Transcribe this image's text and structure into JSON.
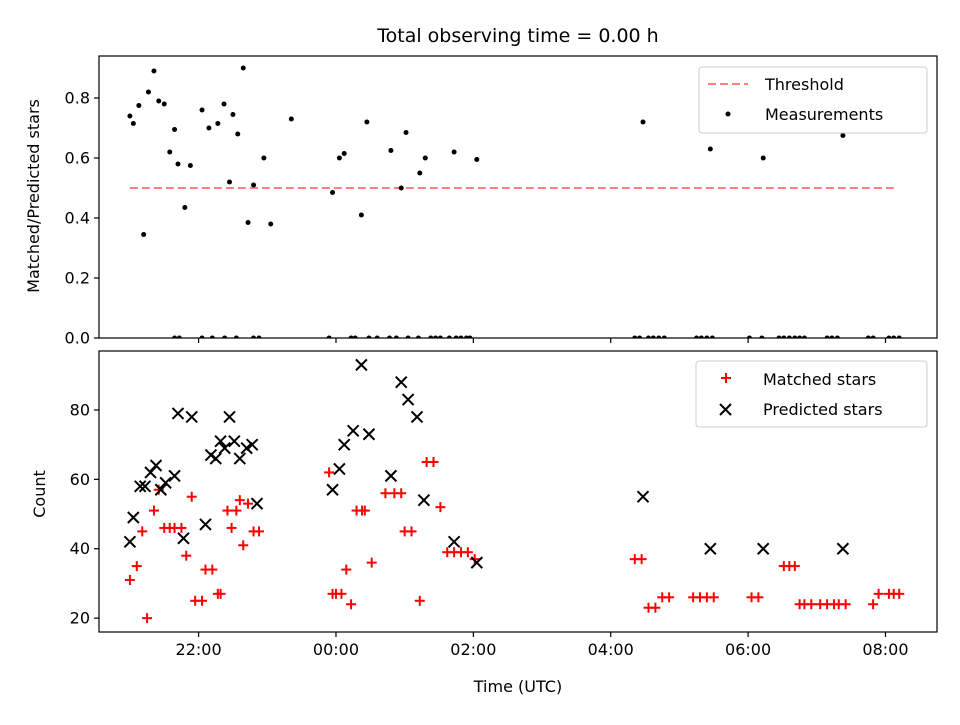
{
  "chart_data": [
    {
      "type": "scatter",
      "title": "Total observing time = 0.00 h",
      "xlabel": "",
      "ylabel": "Matched/Predicted stars",
      "xlim": [
        -3.45,
        8.75
      ],
      "ylim": [
        0,
        0.94
      ],
      "xticks": [
        -2,
        0,
        2,
        4,
        6,
        8
      ],
      "xtick_labels": [
        "",
        "",
        "",
        "",
        "",
        ""
      ],
      "yticks": [
        0,
        0.2,
        0.4,
        0.6,
        0.8
      ],
      "ytick_labels": [
        "0.0",
        "0.2",
        "0.4",
        "0.6",
        "0.8"
      ],
      "legend_position": "top-right",
      "series": [
        {
          "name": "Threshold",
          "style": "dashed-line",
          "color": "#ff7f7f",
          "x": [
            -3.0,
            8.15
          ],
          "y": [
            0.5,
            0.5
          ]
        },
        {
          "name": "Measurements",
          "style": "dot",
          "color": "#000000",
          "x": [
            -3.0,
            -2.95,
            -2.87,
            -2.8,
            -2.73,
            -2.65,
            -2.58,
            -2.5,
            -2.42,
            -2.35,
            -2.3,
            -2.2,
            -2.12,
            -1.95,
            -1.85,
            -1.72,
            -1.63,
            -1.55,
            -1.5,
            -1.43,
            -1.35,
            -1.28,
            -1.2,
            -1.05,
            -0.95,
            -0.65,
            -0.05,
            0.05,
            0.12,
            0.37,
            0.45,
            0.8,
            0.95,
            1.02,
            1.22,
            1.3,
            1.72,
            2.05,
            4.47,
            5.45,
            6.22,
            7.38
          ],
          "y": [
            0.74,
            0.715,
            0.775,
            0.345,
            0.82,
            0.89,
            0.79,
            0.78,
            0.62,
            0.695,
            0.58,
            0.435,
            0.575,
            0.76,
            0.7,
            0.715,
            0.78,
            0.52,
            0.745,
            0.68,
            0.9,
            0.385,
            0.51,
            0.6,
            0.38,
            0.73,
            0.485,
            0.6,
            0.615,
            0.41,
            0.72,
            0.625,
            0.5,
            0.685,
            0.55,
            0.6,
            0.62,
            0.595,
            0.72,
            0.63,
            0.6,
            0.675
          ]
        },
        {
          "name": "",
          "style": "dot",
          "color": "#000000",
          "x": [
            -2.35,
            -2.28,
            -1.95,
            -1.8,
            -1.62,
            -1.45,
            -1.2,
            -1.12,
            -0.1,
            0.22,
            0.28,
            0.48,
            0.6,
            0.78,
            0.88,
            1.05,
            1.2,
            1.38,
            1.45,
            1.52,
            1.65,
            1.75,
            1.82,
            1.9,
            1.95,
            4.35,
            4.42,
            4.55,
            4.62,
            4.7,
            4.78,
            5.25,
            5.32,
            5.4,
            5.48,
            6.02,
            6.2,
            6.45,
            6.52,
            6.6,
            6.68,
            6.75,
            6.82,
            7.15,
            7.22,
            7.3,
            7.75,
            7.82,
            8.05,
            8.12,
            8.2
          ],
          "y": [
            0,
            0,
            0,
            0,
            0,
            0,
            0,
            0,
            0,
            0,
            0,
            0,
            0,
            0,
            0,
            0,
            0,
            0,
            0,
            0,
            0,
            0,
            0,
            0,
            0,
            0,
            0,
            0,
            0,
            0,
            0,
            0,
            0,
            0,
            0,
            0,
            0,
            0,
            0,
            0,
            0,
            0,
            0,
            0,
            0,
            0,
            0,
            0,
            0,
            0,
            0
          ]
        }
      ]
    },
    {
      "type": "scatter",
      "title": "",
      "xlabel": "Time (UTC)",
      "ylabel": "Count",
      "xlim": [
        -3.45,
        8.75
      ],
      "ylim": [
        16,
        97
      ],
      "xticks": [
        -2,
        0,
        2,
        4,
        6,
        8
      ],
      "xtick_labels": [
        "22:00",
        "00:00",
        "02:00",
        "04:00",
        "06:00",
        "08:00"
      ],
      "yticks": [
        20,
        40,
        60,
        80
      ],
      "ytick_labels": [
        "20",
        "40",
        "60",
        "80"
      ],
      "legend_position": "top-right",
      "series": [
        {
          "name": "Matched stars",
          "style": "plus",
          "color": "#ff0000",
          "x": [
            -3.0,
            -2.9,
            -2.82,
            -2.75,
            -2.65,
            -2.58,
            -2.5,
            -2.42,
            -2.35,
            -2.25,
            -2.18,
            -2.1,
            -2.05,
            -1.95,
            -1.9,
            -1.8,
            -1.72,
            -1.68,
            -1.58,
            -1.52,
            -1.45,
            -1.4,
            -1.35,
            -1.28,
            -1.2,
            -1.12,
            -0.1,
            -0.05,
            0.0,
            0.08,
            0.15,
            0.22,
            0.3,
            0.38,
            0.42,
            0.52,
            0.72,
            0.85,
            0.95,
            1.0,
            1.1,
            1.22,
            1.32,
            1.42,
            1.52,
            1.62,
            1.72,
            1.82,
            1.92,
            2.02,
            4.35,
            4.45,
            4.55,
            4.65,
            4.75,
            4.85,
            5.2,
            5.3,
            5.4,
            5.5,
            6.05,
            6.15,
            6.52,
            6.6,
            6.68,
            6.75,
            6.82,
            6.92,
            7.05,
            7.15,
            7.25,
            7.32,
            7.42,
            7.82,
            7.9,
            8.05,
            8.12,
            8.2
          ],
          "y": [
            31,
            35,
            45,
            20,
            51,
            57,
            46,
            46,
            46,
            46,
            38,
            55,
            25,
            25,
            34,
            34,
            27,
            27,
            51,
            46,
            51,
            54,
            41,
            53,
            45,
            45,
            62,
            27,
            27,
            27,
            34,
            24,
            51,
            51,
            51,
            36,
            56,
            56,
            56,
            45,
            45,
            25,
            65,
            65,
            52,
            39,
            39,
            39,
            39,
            37,
            37,
            37,
            23,
            23,
            26,
            26,
            26,
            26,
            26,
            26,
            26,
            26,
            35,
            35,
            35,
            24,
            24,
            24,
            24,
            24,
            24,
            24,
            24,
            24,
            27,
            27,
            27,
            27
          ],
          "x_note": ""
        },
        {
          "name": "Predicted stars",
          "style": "x",
          "color": "#000000",
          "x": [
            -3.0,
            -2.95,
            -2.85,
            -2.78,
            -2.7,
            -2.62,
            -2.55,
            -2.48,
            -2.35,
            -2.3,
            -2.22,
            -2.1,
            -1.9,
            -1.82,
            -1.75,
            -1.68,
            -1.62,
            -1.55,
            -1.48,
            -1.4,
            -1.3,
            -1.22,
            -1.15,
            -0.05,
            0.05,
            0.12,
            0.25,
            0.37,
            0.48,
            0.8,
            0.95,
            1.05,
            1.18,
            1.28,
            1.72,
            2.05,
            4.47,
            5.45,
            6.22,
            7.38
          ],
          "y": [
            42,
            49,
            58,
            58,
            62,
            64,
            57,
            59,
            61,
            79,
            43,
            78,
            47,
            67,
            66,
            71,
            69,
            78,
            71,
            66,
            69,
            70,
            53,
            57,
            63,
            70,
            74,
            93,
            73,
            61,
            88,
            83,
            78,
            54,
            42,
            36,
            55,
            40,
            40,
            40
          ]
        }
      ]
    }
  ]
}
